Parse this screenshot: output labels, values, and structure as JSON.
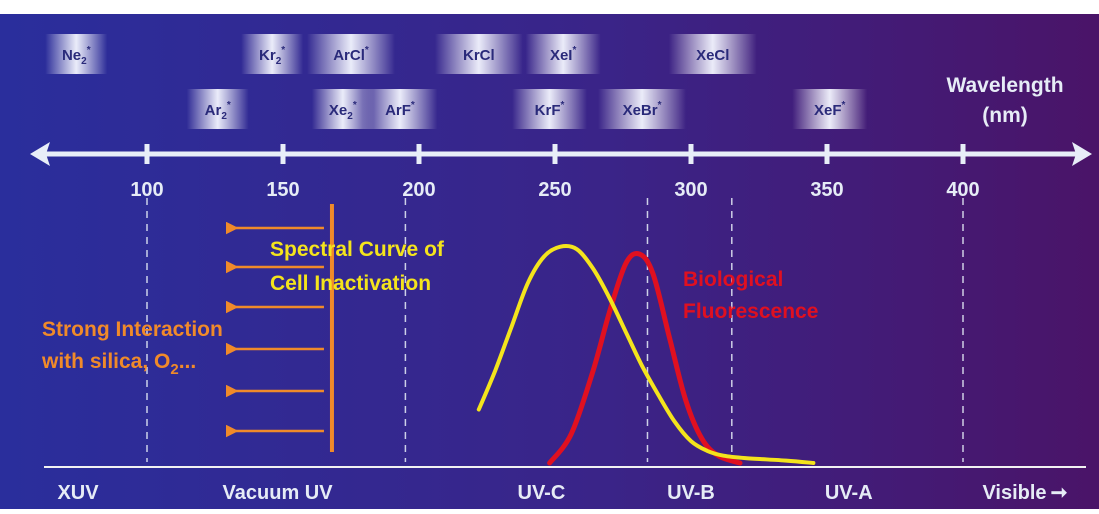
{
  "excimers": [
    {
      "base": "Ne",
      "sub": "2",
      "sup": "*",
      "nm": 74
    },
    {
      "base": "Ar",
      "sub": "2",
      "sup": "*",
      "nm": 126
    },
    {
      "base": "Kr",
      "sub": "2",
      "sup": "*",
      "nm": 146
    },
    {
      "base": "Xe",
      "sub": "2",
      "sup": "*",
      "nm": 172
    },
    {
      "base": "ArCl",
      "sub": "",
      "sup": "*",
      "nm": 175
    },
    {
      "base": "ArF",
      "sub": "",
      "sup": "*",
      "nm": 193
    },
    {
      "base": "KrCl",
      "sub": "",
      "sup": "",
      "nm": 222
    },
    {
      "base": "KrF",
      "sub": "",
      "sup": "*",
      "nm": 248
    },
    {
      "base": "XeI",
      "sub": "",
      "sup": "*",
      "nm": 253
    },
    {
      "base": "XeBr",
      "sub": "",
      "sup": "*",
      "nm": 282
    },
    {
      "base": "XeCl",
      "sub": "",
      "sup": "",
      "nm": 308
    },
    {
      "base": "XeF",
      "sub": "",
      "sup": "*",
      "nm": 351
    }
  ],
  "axis": {
    "title_line1": "Wavelength",
    "title_line2": "(nm)",
    "ticks": [
      100,
      150,
      200,
      250,
      300,
      350,
      400
    ]
  },
  "curves": {
    "cell_inactivation": {
      "label_line1": "Spectral Curve of",
      "label_line2": "Cell Inactivation",
      "color": "#f4e41c",
      "points": [
        [
          222,
          0.22
        ],
        [
          228,
          0.38
        ],
        [
          234,
          0.56
        ],
        [
          240,
          0.74
        ],
        [
          246,
          0.85
        ],
        [
          252,
          0.89
        ],
        [
          258,
          0.88
        ],
        [
          264,
          0.8
        ],
        [
          270,
          0.68
        ],
        [
          276,
          0.54
        ],
        [
          282,
          0.4
        ],
        [
          288,
          0.28
        ],
        [
          294,
          0.17
        ],
        [
          300,
          0.09
        ],
        [
          306,
          0.05
        ],
        [
          312,
          0.03
        ],
        [
          320,
          0.02
        ],
        [
          335,
          0.01
        ],
        [
          345,
          0.0
        ]
      ]
    },
    "biological_fluorescence": {
      "label_line1": "Biological",
      "label_line2": "Fluorescence",
      "color": "#e01020",
      "points": [
        [
          248,
          0.0
        ],
        [
          256,
          0.12
        ],
        [
          264,
          0.38
        ],
        [
          270,
          0.62
        ],
        [
          276,
          0.82
        ],
        [
          281,
          0.86
        ],
        [
          286,
          0.78
        ],
        [
          292,
          0.52
        ],
        [
          298,
          0.26
        ],
        [
          304,
          0.1
        ],
        [
          310,
          0.03
        ],
        [
          318,
          0.0
        ]
      ]
    }
  },
  "absorption_note": {
    "line1": "Strong Interaction",
    "line2_prefix": "with silica, O",
    "line2_sub": "2",
    "line2_suffix": "...",
    "color": "#f08a2a",
    "cutoff_nm": 168
  },
  "regions": {
    "boundaries_nm": [
      100,
      195,
      284,
      315,
      400
    ],
    "labels": [
      {
        "text": "XUV",
        "nm": 85
      },
      {
        "text": "Vacuum UV",
        "nm": 148
      },
      {
        "text": "UV-C",
        "nm": 245
      },
      {
        "text": "UV-B",
        "nm": 300
      },
      {
        "text": "UV-A",
        "nm": 358
      },
      {
        "text": "Visible",
        "nm": 402
      }
    ],
    "visible_arrow": "➞"
  },
  "colors": {
    "bg_left": "#2a2e9c",
    "bg_right": "#4a1468",
    "axis": "#e8eef8",
    "text": "#e6ecf6"
  }
}
